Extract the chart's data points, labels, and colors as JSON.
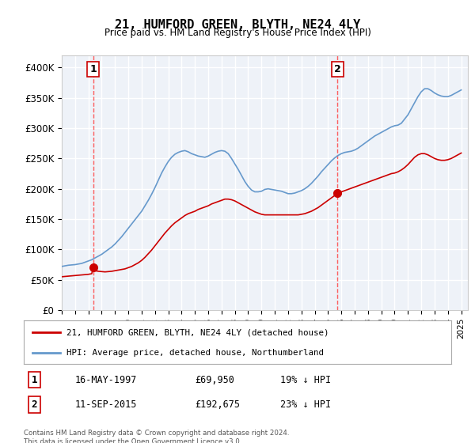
{
  "title": "21, HUMFORD GREEN, BLYTH, NE24 4LY",
  "subtitle": "Price paid vs. HM Land Registry's House Price Index (HPI)",
  "ylabel_ticks": [
    "£0",
    "£50K",
    "£100K",
    "£150K",
    "£200K",
    "£250K",
    "£300K",
    "£350K",
    "£400K"
  ],
  "ytick_values": [
    0,
    50000,
    100000,
    150000,
    200000,
    250000,
    300000,
    350000,
    400000
  ],
  "ylim": [
    0,
    420000
  ],
  "xlim_start": 1995.0,
  "xlim_end": 2025.5,
  "sale1_x": 1997.37,
  "sale1_y": 69950,
  "sale1_label": "1",
  "sale1_date": "16-MAY-1997",
  "sale1_price": "£69,950",
  "sale1_hpi": "19% ↓ HPI",
  "sale2_x": 2015.7,
  "sale2_y": 192675,
  "sale2_label": "2",
  "sale2_date": "11-SEP-2015",
  "sale2_price": "£192,675",
  "sale2_hpi": "23% ↓ HPI",
  "red_line_color": "#cc0000",
  "blue_line_color": "#6699cc",
  "marker_color": "#cc0000",
  "vline_color": "#ff4444",
  "bg_color": "#eef2f8",
  "grid_color": "#ffffff",
  "legend_label_red": "21, HUMFORD GREEN, BLYTH, NE24 4LY (detached house)",
  "legend_label_blue": "HPI: Average price, detached house, Northumberland",
  "footer": "Contains HM Land Registry data © Crown copyright and database right 2024.\nThis data is licensed under the Open Government Licence v3.0.",
  "hpi_data_x": [
    1995.0,
    1995.25,
    1995.5,
    1995.75,
    1996.0,
    1996.25,
    1996.5,
    1996.75,
    1997.0,
    1997.25,
    1997.5,
    1997.75,
    1998.0,
    1998.25,
    1998.5,
    1998.75,
    1999.0,
    1999.25,
    1999.5,
    1999.75,
    2000.0,
    2000.25,
    2000.5,
    2000.75,
    2001.0,
    2001.25,
    2001.5,
    2001.75,
    2002.0,
    2002.25,
    2002.5,
    2002.75,
    2003.0,
    2003.25,
    2003.5,
    2003.75,
    2004.0,
    2004.25,
    2004.5,
    2004.75,
    2005.0,
    2005.25,
    2005.5,
    2005.75,
    2006.0,
    2006.25,
    2006.5,
    2006.75,
    2007.0,
    2007.25,
    2007.5,
    2007.75,
    2008.0,
    2008.25,
    2008.5,
    2008.75,
    2009.0,
    2009.25,
    2009.5,
    2009.75,
    2010.0,
    2010.25,
    2010.5,
    2010.75,
    2011.0,
    2011.25,
    2011.5,
    2011.75,
    2012.0,
    2012.25,
    2012.5,
    2012.75,
    2013.0,
    2013.25,
    2013.5,
    2013.75,
    2014.0,
    2014.25,
    2014.5,
    2014.75,
    2015.0,
    2015.25,
    2015.5,
    2015.75,
    2016.0,
    2016.25,
    2016.5,
    2016.75,
    2017.0,
    2017.25,
    2017.5,
    2017.75,
    2018.0,
    2018.25,
    2018.5,
    2018.75,
    2019.0,
    2019.25,
    2019.5,
    2019.75,
    2020.0,
    2020.25,
    2020.5,
    2020.75,
    2021.0,
    2021.25,
    2021.5,
    2021.75,
    2022.0,
    2022.25,
    2022.5,
    2022.75,
    2023.0,
    2023.25,
    2023.5,
    2023.75,
    2024.0,
    2024.25,
    2024.5,
    2024.75,
    2025.0
  ],
  "hpi_data_y": [
    72000,
    73000,
    74000,
    74500,
    75000,
    76000,
    77000,
    79000,
    81000,
    83000,
    86000,
    89000,
    92000,
    96000,
    100000,
    104000,
    109000,
    115000,
    121000,
    128000,
    135000,
    142000,
    149000,
    156000,
    163000,
    172000,
    181000,
    191000,
    202000,
    214000,
    226000,
    236000,
    245000,
    252000,
    257000,
    260000,
    262000,
    263000,
    261000,
    258000,
    256000,
    254000,
    253000,
    252000,
    254000,
    257000,
    260000,
    262000,
    263000,
    262000,
    258000,
    250000,
    241000,
    232000,
    222000,
    212000,
    204000,
    198000,
    195000,
    195000,
    196000,
    199000,
    200000,
    199000,
    198000,
    197000,
    196000,
    194000,
    192000,
    192000,
    193000,
    195000,
    197000,
    200000,
    204000,
    209000,
    215000,
    221000,
    228000,
    234000,
    240000,
    246000,
    251000,
    255000,
    258000,
    260000,
    261000,
    262000,
    264000,
    267000,
    271000,
    275000,
    279000,
    283000,
    287000,
    290000,
    293000,
    296000,
    299000,
    302000,
    304000,
    305000,
    308000,
    315000,
    322000,
    332000,
    342000,
    352000,
    360000,
    365000,
    365000,
    362000,
    358000,
    355000,
    353000,
    352000,
    352000,
    354000,
    357000,
    360000,
    363000
  ],
  "price_data_x": [
    1995.0,
    1995.25,
    1995.5,
    1995.75,
    1996.0,
    1996.25,
    1996.5,
    1996.75,
    1997.0,
    1997.25,
    1997.37,
    1997.5,
    1997.75,
    1998.0,
    1998.25,
    1998.5,
    1998.75,
    1999.0,
    1999.25,
    1999.5,
    1999.75,
    2000.0,
    2000.25,
    2000.5,
    2000.75,
    2001.0,
    2001.25,
    2001.5,
    2001.75,
    2002.0,
    2002.25,
    2002.5,
    2002.75,
    2003.0,
    2003.25,
    2003.5,
    2003.75,
    2004.0,
    2004.25,
    2004.5,
    2004.75,
    2005.0,
    2005.25,
    2005.5,
    2005.75,
    2006.0,
    2006.25,
    2006.5,
    2006.75,
    2007.0,
    2007.25,
    2007.5,
    2007.75,
    2008.0,
    2008.25,
    2008.5,
    2008.75,
    2009.0,
    2009.25,
    2009.5,
    2009.75,
    2010.0,
    2010.25,
    2010.5,
    2010.75,
    2011.0,
    2011.25,
    2011.5,
    2011.75,
    2012.0,
    2012.25,
    2012.5,
    2012.75,
    2013.0,
    2013.25,
    2013.5,
    2013.75,
    2014.0,
    2014.25,
    2014.5,
    2014.75,
    2015.0,
    2015.25,
    2015.5,
    2015.7,
    2015.75,
    2016.0,
    2016.25,
    2016.5,
    2016.75,
    2017.0,
    2017.25,
    2017.5,
    2017.75,
    2018.0,
    2018.25,
    2018.5,
    2018.75,
    2019.0,
    2019.25,
    2019.5,
    2019.75,
    2020.0,
    2020.25,
    2020.5,
    2020.75,
    2021.0,
    2021.25,
    2021.5,
    2021.75,
    2022.0,
    2022.25,
    2022.5,
    2022.75,
    2023.0,
    2023.25,
    2023.5,
    2023.75,
    2024.0,
    2024.25,
    2024.5,
    2024.75,
    2025.0
  ],
  "price_data_y": [
    55000,
    55500,
    56000,
    56500,
    57000,
    57500,
    58000,
    58500,
    59000,
    60000,
    69950,
    65000,
    64000,
    63500,
    63000,
    63500,
    64000,
    65000,
    66000,
    67000,
    68000,
    70000,
    72000,
    75000,
    78000,
    82000,
    87000,
    93000,
    99000,
    106000,
    113000,
    120000,
    127000,
    133000,
    139000,
    144000,
    148000,
    152000,
    156000,
    159000,
    161000,
    163000,
    166000,
    168000,
    170000,
    172000,
    175000,
    177000,
    179000,
    181000,
    183000,
    183000,
    182000,
    180000,
    177000,
    174000,
    171000,
    168000,
    165000,
    162000,
    160000,
    158000,
    157000,
    157000,
    157000,
    157000,
    157000,
    157000,
    157000,
    157000,
    157000,
    157000,
    157000,
    158000,
    159000,
    161000,
    163000,
    166000,
    169000,
    173000,
    177000,
    181000,
    185000,
    189000,
    192675,
    192675,
    195000,
    197000,
    199000,
    201000,
    203000,
    205000,
    207000,
    209000,
    211000,
    213000,
    215000,
    217000,
    219000,
    221000,
    223000,
    225000,
    226000,
    228000,
    231000,
    235000,
    240000,
    246000,
    252000,
    256000,
    258000,
    258000,
    256000,
    253000,
    250000,
    248000,
    247000,
    247000,
    248000,
    250000,
    253000,
    256000,
    259000
  ]
}
